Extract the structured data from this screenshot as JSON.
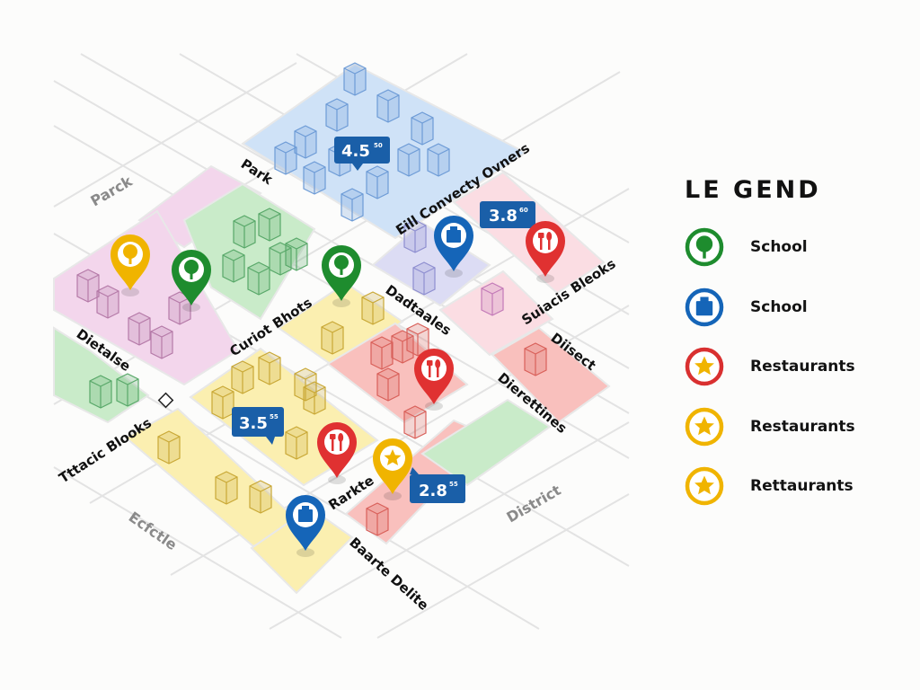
{
  "map": {
    "district_labels": [
      "Parck",
      "Ecfctle",
      "District"
    ],
    "street_labels": [
      "Park",
      "Eill Convecty Ovners",
      "Dadtaales",
      "Suiacis Bleoks",
      "Diisect",
      "Curiot Bhots",
      "Dietalse",
      "Dierettines",
      "Tttacic Blooks",
      "Rarkte",
      "Baarte Delite"
    ],
    "ratings": [
      {
        "value": "4.5",
        "sup": "50"
      },
      {
        "value": "3.8",
        "sup": "60"
      },
      {
        "value": "3.5",
        "sup": "55"
      },
      {
        "value": "2.8",
        "sup": "55"
      }
    ],
    "markers": [
      {
        "icon": "tree-icon",
        "color": "#f0b400"
      },
      {
        "icon": "tree-icon",
        "color": "#1e8c2e"
      },
      {
        "icon": "tree-icon",
        "color": "#1e8c2e"
      },
      {
        "icon": "building-icon",
        "color": "#1565b8"
      },
      {
        "icon": "fork-knife-icon",
        "color": "#e03131"
      },
      {
        "icon": "fork-knife-icon",
        "color": "#e03131"
      },
      {
        "icon": "fork-knife-icon",
        "color": "#e03131"
      },
      {
        "icon": "star-icon",
        "color": "#f0b400"
      },
      {
        "icon": "building-icon",
        "color": "#1565b8"
      }
    ],
    "zone_colors": {
      "blue": "#cfe2f7",
      "pink": "#f3d6ec",
      "green": "#c9ebc9",
      "yellow": "#fbefb0",
      "red": "#f9c0bd",
      "lavender": "#dcdcf4",
      "light_pink": "#fbdde3"
    },
    "badge_color": "#1a5fa8"
  },
  "legend": {
    "title": "LE GEND",
    "items": [
      {
        "label": "School",
        "icon": "tree-icon",
        "color": "#1e8c2e"
      },
      {
        "label": "School",
        "icon": "building-icon",
        "color": "#1565b8"
      },
      {
        "label": "Restaurants",
        "icon": "star-icon",
        "color": "#d93030"
      },
      {
        "label": "Restaurants",
        "icon": "star-icon",
        "color": "#f0b400"
      },
      {
        "label": "Rettaurants",
        "icon": "star-icon",
        "color": "#f0b400"
      }
    ]
  }
}
